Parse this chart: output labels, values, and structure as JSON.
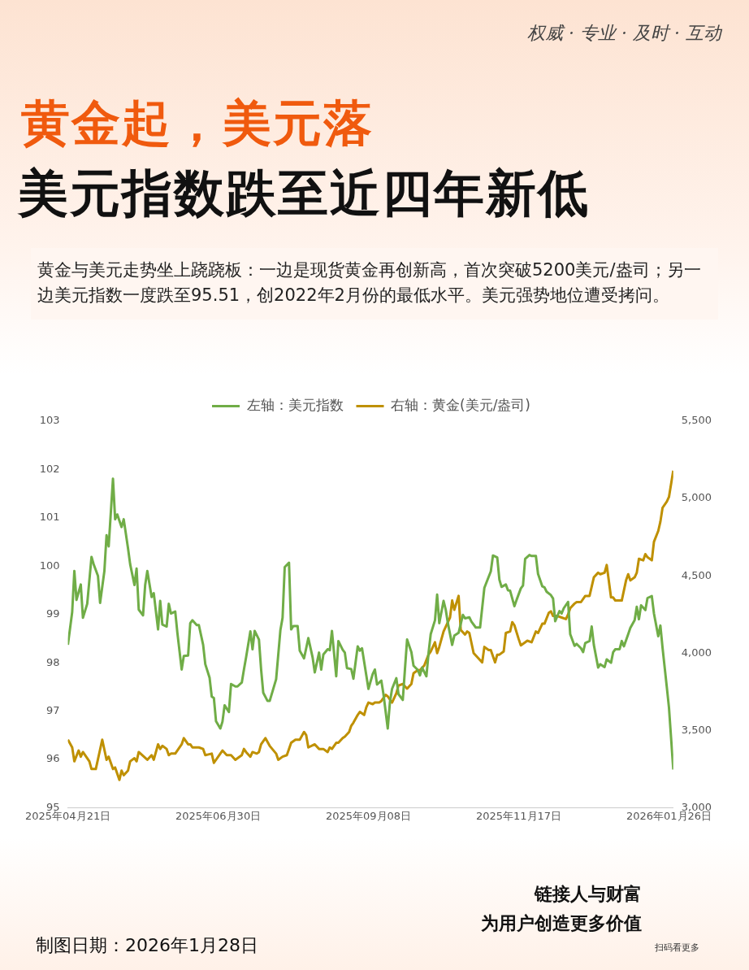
{
  "chart_data": {
    "type": "line",
    "title": "黄金起，美元落",
    "subtitle": "美元指数跌至近四年新低",
    "annotations": [
      "权威 · 专业 · 及时 · 互动",
      "黄金与美元走势坐上跷跷板：一边是现货黄金再创新高，首次突破5200美元/盎司；另一边美元指数一度跌至95.51，创2022年2月份的最低水平。美元强势地位遭受拷问。",
      "制图日期：2026年1月28日",
      "链接人与财富",
      "为用户创造更多价值",
      "扫码看更多"
    ],
    "xlim": [
      "2025-04-21",
      "2026-01-28"
    ],
    "xticks": [
      {
        "value": "2025-04-21",
        "label": "2025年04月21日"
      },
      {
        "value": "2025-06-30",
        "label": "2025年06月30日"
      },
      {
        "value": "2025-09-08",
        "label": "2025年09月08日"
      },
      {
        "value": "2025-11-17",
        "label": "2025年11月17日"
      },
      {
        "value": "2026-01-26",
        "label": "2026年01月26日"
      }
    ],
    "ylim": [
      95,
      103
    ],
    "yticks": [
      95,
      96,
      97,
      98,
      99,
      100,
      101,
      102,
      103
    ],
    "y2lim": [
      3000,
      5500
    ],
    "y2ticks": [
      {
        "value": 3000,
        "label": "3,000"
      },
      {
        "value": 3500,
        "label": "3,500"
      },
      {
        "value": 4000,
        "label": "4,000"
      },
      {
        "value": 4500,
        "label": "4,500"
      },
      {
        "value": 5000,
        "label": "5,000"
      },
      {
        "value": 5500,
        "label": "5,500"
      }
    ],
    "grid": false,
    "legend": "top",
    "marker": "none",
    "line_style": "solid",
    "series": [
      {
        "name": "左轴：美元指数",
        "color": "#70ad47",
        "x": [
          "2025-04-21",
          "2025-04-23",
          "2025-04-24",
          "2025-04-25",
          "2025-04-27",
          "2025-04-28",
          "2025-04-30",
          "2025-05-02",
          "2025-05-03",
          "2025-05-05",
          "2025-05-06",
          "2025-05-08",
          "2025-05-09",
          "2025-05-10",
          "2025-05-12",
          "2025-05-13",
          "2025-05-14",
          "2025-05-16",
          "2025-05-17",
          "2025-05-19",
          "2025-05-20",
          "2025-05-22",
          "2025-05-23",
          "2025-05-24",
          "2025-05-26",
          "2025-05-27",
          "2025-05-28",
          "2025-05-30",
          "2025-05-31",
          "2025-06-02",
          "2025-06-03",
          "2025-06-04",
          "2025-06-06",
          "2025-06-07",
          "2025-06-08",
          "2025-06-10",
          "2025-06-11",
          "2025-06-13",
          "2025-06-14",
          "2025-06-16",
          "2025-06-17",
          "2025-06-18",
          "2025-06-20",
          "2025-06-21",
          "2025-06-23",
          "2025-06-24",
          "2025-06-26",
          "2025-06-27",
          "2025-06-28",
          "2025-06-29",
          "2025-07-01",
          "2025-07-02",
          "2025-07-03",
          "2025-07-05",
          "2025-07-06",
          "2025-07-08",
          "2025-07-09",
          "2025-07-11",
          "2025-07-12",
          "2025-07-13",
          "2025-07-15",
          "2025-07-16",
          "2025-07-17",
          "2025-07-19",
          "2025-07-20",
          "2025-07-21",
          "2025-07-23",
          "2025-07-24",
          "2025-07-27",
          "2025-07-29",
          "2025-07-30",
          "2025-07-31",
          "2025-08-02",
          "2025-08-03",
          "2025-08-04",
          "2025-08-06",
          "2025-08-07",
          "2025-08-09",
          "2025-08-11",
          "2025-08-13",
          "2025-08-14",
          "2025-08-16",
          "2025-08-17",
          "2025-08-18",
          "2025-08-20",
          "2025-08-21",
          "2025-08-22",
          "2025-08-24",
          "2025-08-25",
          "2025-08-27",
          "2025-08-28",
          "2025-08-29",
          "2025-08-31",
          "2025-09-01",
          "2025-09-03",
          "2025-09-04",
          "2025-09-05",
          "2025-09-07",
          "2025-09-08",
          "2025-09-10",
          "2025-09-11",
          "2025-09-12",
          "2025-09-14",
          "2025-09-15",
          "2025-09-17",
          "2025-09-18",
          "2025-09-19",
          "2025-09-21",
          "2025-09-22",
          "2025-09-24",
          "2025-09-25",
          "2025-09-26",
          "2025-09-28",
          "2025-09-29",
          "2025-10-01",
          "2025-10-02",
          "2025-10-03",
          "2025-10-05",
          "2025-10-06",
          "2025-10-07",
          "2025-10-09",
          "2025-10-10",
          "2025-10-11",
          "2025-10-13",
          "2025-10-14",
          "2025-10-15",
          "2025-10-17",
          "2025-10-18",
          "2025-10-20",
          "2025-10-22",
          "2025-10-23",
          "2025-10-25",
          "2025-10-26",
          "2025-10-28",
          "2025-10-30",
          "2025-11-01",
          "2025-11-04",
          "2025-11-05",
          "2025-11-07",
          "2025-11-08",
          "2025-11-09",
          "2025-11-11",
          "2025-11-12",
          "2025-11-13",
          "2025-11-15",
          "2025-11-16",
          "2025-11-18",
          "2025-11-19",
          "2025-11-20",
          "2025-11-22",
          "2025-11-23",
          "2025-11-25",
          "2025-11-26",
          "2025-11-28",
          "2025-11-29",
          "2025-11-30",
          "2025-12-02",
          "2025-12-03",
          "2025-12-04",
          "2025-12-06",
          "2025-12-07",
          "2025-12-08",
          "2025-12-10",
          "2025-12-11",
          "2025-12-13",
          "2025-12-14",
          "2025-12-16",
          "2025-12-17",
          "2025-12-18",
          "2025-12-20",
          "2025-12-21",
          "2025-12-22",
          "2025-12-24",
          "2025-12-25",
          "2025-12-27",
          "2025-12-28",
          "2025-12-30",
          "2025-12-31",
          "2026-01-01",
          "2026-01-03",
          "2026-01-04",
          "2026-01-05",
          "2026-01-07",
          "2026-01-08",
          "2026-01-10",
          "2026-01-11",
          "2026-01-12",
          "2026-01-13",
          "2026-01-15",
          "2026-01-16",
          "2026-01-18",
          "2026-01-19",
          "2026-01-21",
          "2026-01-22",
          "2026-01-23",
          "2026-01-25",
          "2026-01-26",
          "2026-01-28"
        ],
        "values": [
          98.37,
          99.05,
          99.9,
          99.3,
          99.62,
          98.93,
          99.22,
          100.19,
          100.04,
          99.8,
          99.24,
          99.9,
          100.64,
          100.41,
          101.81,
          100.97,
          101.07,
          100.81,
          100.97,
          100.37,
          100.04,
          99.61,
          99.95,
          99.1,
          98.98,
          99.61,
          99.9,
          99.36,
          99.44,
          98.69,
          99.28,
          98.79,
          98.75,
          99.22,
          99.02,
          99.06,
          98.62,
          97.86,
          98.14,
          98.15,
          98.82,
          98.88,
          98.78,
          98.78,
          98.37,
          97.97,
          97.69,
          97.3,
          97.27,
          96.79,
          96.64,
          96.78,
          97.12,
          96.98,
          97.56,
          97.51,
          97.51,
          97.59,
          97.86,
          98.11,
          98.65,
          98.28,
          98.66,
          98.48,
          97.86,
          97.38,
          97.21,
          97.21,
          97.66,
          98.68,
          98.93,
          99.98,
          100.07,
          98.69,
          98.76,
          98.76,
          98.25,
          98.09,
          98.51,
          98.11,
          97.8,
          98.21,
          97.86,
          98.17,
          98.28,
          98.26,
          98.66,
          97.72,
          98.45,
          98.27,
          98.21,
          97.89,
          97.87,
          97.67,
          98.34,
          98.25,
          98.3,
          97.74,
          97.46,
          97.77,
          97.86,
          97.55,
          97.63,
          97.35,
          96.64,
          97.18,
          97.46,
          97.68,
          97.35,
          97.23,
          97.86,
          98.48,
          98.22,
          97.94,
          97.85,
          97.74,
          97.9,
          97.72,
          98.2,
          98.59,
          98.88,
          99.41,
          98.82,
          99.28,
          99.1,
          98.82,
          98.37,
          98.56,
          98.62,
          98.99,
          98.92,
          98.94,
          98.85,
          98.73,
          98.73,
          99.55,
          99.89,
          100.22,
          100.18,
          99.72,
          99.57,
          99.62,
          99.5,
          99.49,
          99.17,
          99.3,
          99.54,
          99.6,
          100.15,
          100.23,
          100.21,
          100.21,
          99.84,
          99.58,
          99.56,
          99.47,
          99.4,
          99.33,
          98.86,
          99.07,
          99.02,
          99.13,
          99.26,
          98.59,
          98.35,
          98.39,
          98.3,
          98.22,
          98.41,
          98.45,
          98.75,
          98.37,
          97.9,
          97.97,
          97.91,
          98.07,
          98.0,
          98.22,
          98.28,
          98.28,
          98.45,
          98.34,
          98.59,
          98.72,
          98.88,
          99.16,
          98.9,
          99.19,
          99.09,
          99.34,
          99.38,
          99.02,
          98.55,
          98.77,
          98.31,
          97.49,
          97.07,
          95.79
        ]
      },
      {
        "name": "右轴：黄金(美元/盎司)",
        "color": "#bf9000",
        "axis": "y2",
        "x": [
          "2025-04-21",
          "2025-04-23",
          "2025-04-24",
          "2025-04-26",
          "2025-04-27",
          "2025-04-28",
          "2025-05-01",
          "2025-05-02",
          "2025-05-04",
          "2025-05-07",
          "2025-05-09",
          "2025-05-10",
          "2025-05-12",
          "2025-05-13",
          "2025-05-15",
          "2025-05-16",
          "2025-05-17",
          "2025-05-19",
          "2025-05-20",
          "2025-05-22",
          "2025-05-23",
          "2025-05-24",
          "2025-05-28",
          "2025-05-30",
          "2025-05-31",
          "2025-06-02",
          "2025-06-03",
          "2025-06-04",
          "2025-06-06",
          "2025-06-07",
          "2025-06-08",
          "2025-06-10",
          "2025-06-13",
          "2025-06-14",
          "2025-06-16",
          "2025-06-17",
          "2025-06-18",
          "2025-06-21",
          "2025-06-23",
          "2025-06-24",
          "2025-06-27",
          "2025-06-28",
          "2025-07-01",
          "2025-07-02",
          "2025-07-04",
          "2025-07-06",
          "2025-07-08",
          "2025-07-11",
          "2025-07-12",
          "2025-07-13",
          "2025-07-15",
          "2025-07-16",
          "2025-07-18",
          "2025-07-19",
          "2025-07-20",
          "2025-07-22",
          "2025-07-24",
          "2025-07-27",
          "2025-07-28",
          "2025-07-30",
          "2025-08-01",
          "2025-08-03",
          "2025-08-05",
          "2025-08-07",
          "2025-08-09",
          "2025-08-10",
          "2025-08-11",
          "2025-08-14",
          "2025-08-16",
          "2025-08-18",
          "2025-08-20",
          "2025-08-21",
          "2025-08-22",
          "2025-08-24",
          "2025-08-25",
          "2025-08-27",
          "2025-08-28",
          "2025-08-30",
          "2025-08-31",
          "2025-09-01",
          "2025-09-03",
          "2025-09-04",
          "2025-09-06",
          "2025-09-07",
          "2025-09-08",
          "2025-09-10",
          "2025-09-11",
          "2025-09-13",
          "2025-09-14",
          "2025-09-16",
          "2025-09-17",
          "2025-09-19",
          "2025-09-21",
          "2025-09-22",
          "2025-09-24",
          "2025-09-26",
          "2025-09-28",
          "2025-09-29",
          "2025-10-01",
          "2025-10-02",
          "2025-10-04",
          "2025-10-06",
          "2025-10-07",
          "2025-10-09",
          "2025-10-10",
          "2025-10-11",
          "2025-10-13",
          "2025-10-14",
          "2025-10-16",
          "2025-10-17",
          "2025-10-18",
          "2025-10-20",
          "2025-10-21",
          "2025-10-23",
          "2025-10-24",
          "2025-10-25",
          "2025-10-27",
          "2025-10-31",
          "2025-11-01",
          "2025-11-03",
          "2025-11-04",
          "2025-11-06",
          "2025-11-07",
          "2025-11-08",
          "2025-11-10",
          "2025-11-11",
          "2025-11-13",
          "2025-11-14",
          "2025-11-15",
          "2025-11-17",
          "2025-11-18",
          "2025-11-20",
          "2025-11-21",
          "2025-11-23",
          "2025-11-25",
          "2025-11-26",
          "2025-11-28",
          "2025-11-29",
          "2025-12-01",
          "2025-12-02",
          "2025-12-03",
          "2025-12-05",
          "2025-12-07",
          "2025-12-09",
          "2025-12-10",
          "2025-12-11",
          "2025-12-13",
          "2025-12-14",
          "2025-12-16",
          "2025-12-18",
          "2025-12-19",
          "2025-12-20",
          "2025-12-22",
          "2025-12-24",
          "2025-12-25",
          "2025-12-27",
          "2025-12-28",
          "2025-12-30",
          "2025-12-31",
          "2026-01-01",
          "2026-01-03",
          "2026-01-04",
          "2026-01-06",
          "2026-01-07",
          "2026-01-08",
          "2026-01-10",
          "2026-01-11",
          "2026-01-12",
          "2026-01-14",
          "2026-01-15",
          "2026-01-16",
          "2026-01-18",
          "2026-01-19",
          "2026-01-21",
          "2026-01-22",
          "2026-01-23",
          "2026-01-25",
          "2026-01-26",
          "2026-01-28"
        ],
        "values": [
          3440,
          3390,
          3300,
          3370,
          3330,
          3360,
          3300,
          3250,
          3250,
          3440,
          3310,
          3330,
          3250,
          3260,
          3180,
          3240,
          3210,
          3240,
          3300,
          3320,
          3300,
          3360,
          3310,
          3340,
          3310,
          3410,
          3380,
          3400,
          3380,
          3340,
          3350,
          3350,
          3410,
          3450,
          3410,
          3410,
          3390,
          3390,
          3380,
          3340,
          3350,
          3290,
          3350,
          3370,
          3340,
          3340,
          3310,
          3340,
          3380,
          3360,
          3330,
          3360,
          3350,
          3360,
          3410,
          3450,
          3400,
          3350,
          3310,
          3330,
          3340,
          3420,
          3440,
          3440,
          3490,
          3470,
          3390,
          3410,
          3380,
          3380,
          3360,
          3390,
          3380,
          3420,
          3420,
          3450,
          3460,
          3490,
          3530,
          3550,
          3600,
          3620,
          3600,
          3650,
          3680,
          3670,
          3680,
          3680,
          3690,
          3730,
          3720,
          3680,
          3740,
          3790,
          3800,
          3770,
          3800,
          3870,
          3890,
          3890,
          3920,
          3990,
          4010,
          4070,
          4000,
          4040,
          4140,
          4170,
          4230,
          4340,
          4280,
          4370,
          4150,
          4120,
          4140,
          4130,
          4000,
          3940,
          4040,
          4020,
          4020,
          3940,
          3990,
          3990,
          4010,
          4130,
          4140,
          4200,
          4180,
          4090,
          4050,
          4070,
          4080,
          4070,
          4140,
          4130,
          4190,
          4190,
          4260,
          4270,
          4240,
          4240,
          4230,
          4220,
          4250,
          4290,
          4320,
          4330,
          4330,
          4370,
          4370,
          4370,
          4490,
          4520,
          4510,
          4520,
          4570,
          4360,
          4360,
          4340,
          4340,
          4340,
          4470,
          4510,
          4470,
          4490,
          4520,
          4610,
          4600,
          4640,
          4620,
          4600,
          4720,
          4790,
          4850,
          4940,
          4980,
          5010,
          5180
        ]
      }
    ]
  }
}
